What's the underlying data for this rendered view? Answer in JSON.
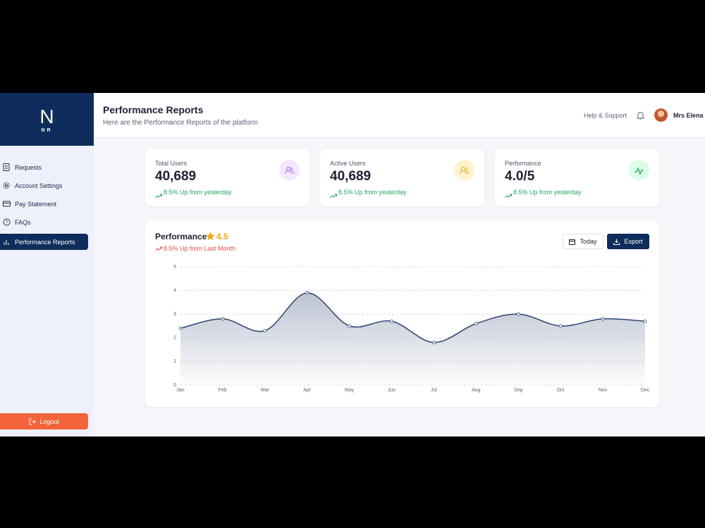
{
  "sidebar": {
    "logo": "N",
    "logo_sub": "NR",
    "menu": [
      "Requests",
      "Account Settings",
      "Pay Statement",
      "FAQs",
      "Performance Reports"
    ],
    "active_item": 4,
    "logout": "Logout"
  },
  "header": {
    "title": "Performance Reports",
    "subtitle": "Here are the Performance Reports of the platform",
    "help": "Help & Support",
    "user": "Mrs Elena"
  },
  "cards": [
    {
      "label": "Total Users",
      "value": "40,689",
      "trend": "8.5% Up from yesterday"
    },
    {
      "label": "Active Users",
      "value": "40,689",
      "trend": "8.5% Up from yesterday"
    },
    {
      "label": "Performance",
      "value": "4.0/5",
      "trend": "8.5% Up from yesterday"
    }
  ],
  "chart_data": {
    "type": "line",
    "title": "Performance",
    "rating": "4.5",
    "subtitle": "8.5% Up from Last Month",
    "buttons": [
      "Today",
      "Export"
    ],
    "categories": [
      "Jan",
      "Feb",
      "Mar",
      "Apr",
      "May",
      "Jun",
      "Jul",
      "Aug",
      "Sep",
      "Oct",
      "Nov",
      "Dec"
    ],
    "values": [
      2.4,
      2.8,
      2.3,
      3.9,
      2.5,
      2.7,
      1.8,
      2.6,
      3.0,
      2.5,
      2.8,
      2.7
    ],
    "color": "#2b4470",
    "ylim": [
      0,
      5
    ],
    "yticks": [
      0,
      1,
      2,
      3,
      4,
      5
    ],
    "grid": true
  }
}
